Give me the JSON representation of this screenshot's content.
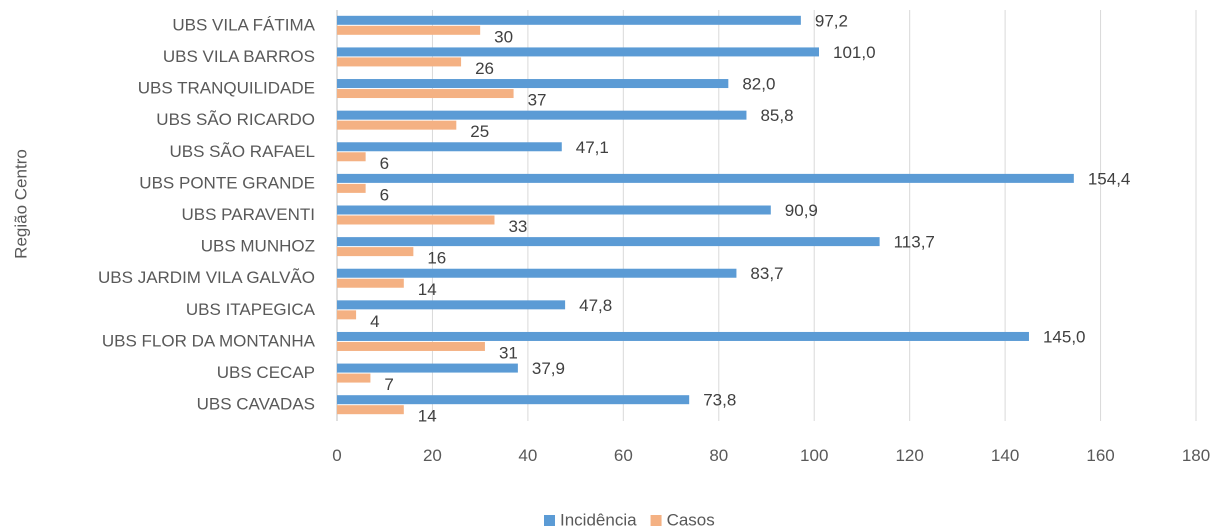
{
  "chart_data": {
    "type": "bar",
    "orientation": "horizontal",
    "ylabel": "Região Centro",
    "categories": [
      "UBS CAVADAS",
      "UBS CECAP",
      "UBS FLOR DA MONTANHA",
      "UBS ITAPEGICA",
      "UBS JARDIM VILA GALVÃO",
      "UBS MUNHOZ",
      "UBS PARAVENTI",
      "UBS PONTE GRANDE",
      "UBS SÃO RAFAEL",
      "UBS SÃO RICARDO",
      "UBS TRANQUILIDADE",
      "UBS VILA BARROS",
      "UBS VILA FÁTIMA"
    ],
    "series": [
      {
        "name": "Incidência",
        "color": "#5b9bd5",
        "values": [
          73.8,
          37.9,
          145.0,
          47.8,
          83.7,
          113.7,
          90.9,
          154.4,
          47.1,
          85.8,
          82.0,
          101.0,
          97.2
        ],
        "labels": [
          "73,8",
          "37,9",
          "145,0",
          "47,8",
          "83,7",
          "113,7",
          "90,9",
          "154,4",
          "47,1",
          "85,8",
          "82,0",
          "101,0",
          "97,2"
        ]
      },
      {
        "name": "Casos",
        "color": "#f4b183",
        "values": [
          14,
          7,
          31,
          4,
          14,
          16,
          33,
          6,
          6,
          25,
          37,
          26,
          30
        ],
        "labels": [
          "14",
          "7",
          "31",
          "4",
          "14",
          "16",
          "33",
          "6",
          "6",
          "25",
          "37",
          "26",
          "30"
        ]
      }
    ],
    "xlim": [
      0,
      180
    ],
    "xticks": [
      0,
      20,
      40,
      60,
      80,
      100,
      120,
      140,
      160,
      180
    ],
    "grid": true,
    "legend_position": "bottom"
  }
}
